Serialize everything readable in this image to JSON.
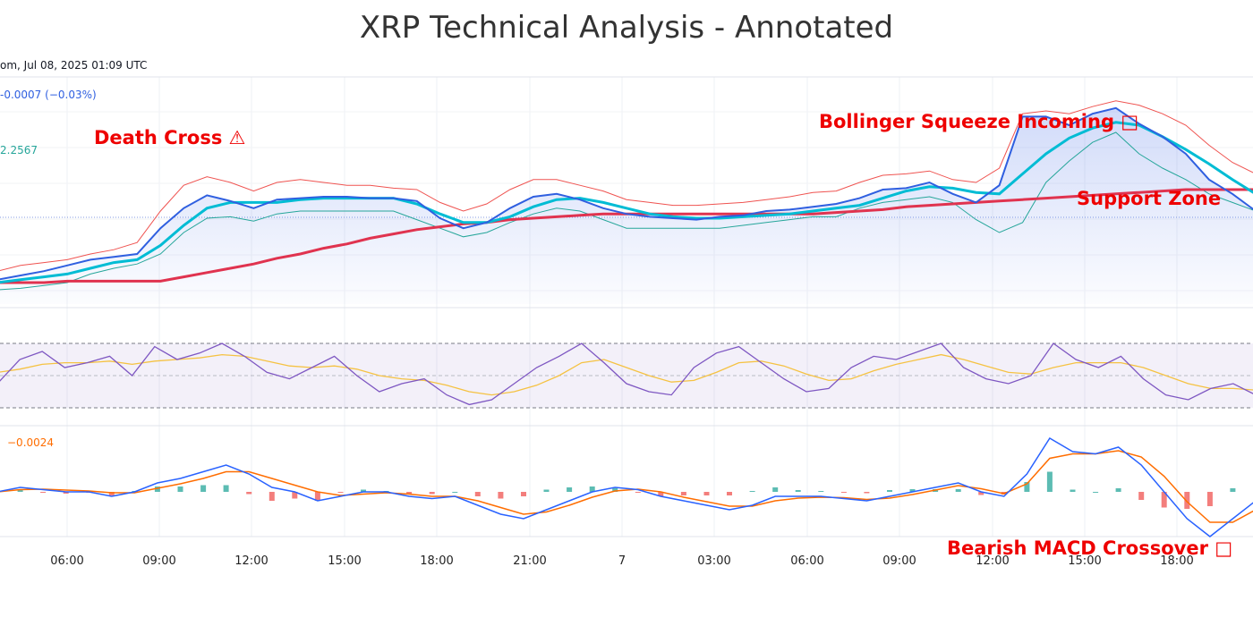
{
  "title": "XRP Technical Analysis - Annotated",
  "header": {
    "info": "om, Jul 08, 2025 01:09 UTC",
    "change": "-0.0007 (−0.03%)",
    "ma_value": "2.2567",
    "macd_value": "−0.0024"
  },
  "colors": {
    "price": "#2f5fe0",
    "bb_upper": "#ef5350",
    "bb_lower": "#26a69a",
    "ma_short": "#00bcd4",
    "ma_long": "#e0334f",
    "rsi": "#7e57c2",
    "rsi_ma": "#f5c242",
    "macd": "#2962ff",
    "signal": "#ff6d00",
    "hist_pos": "#26a69a",
    "hist_neg": "#ef5350",
    "annotation": "#ee0000"
  },
  "chart_data": {
    "type": "line",
    "title": "XRP Technical Analysis - Annotated",
    "x_ticks": [
      "06:00",
      "09:00",
      "12:00",
      "15:00",
      "18:00",
      "21:00",
      "7",
      "03:00",
      "06:00",
      "09:00",
      "12:00",
      "15:00",
      "18:00"
    ],
    "grid": true,
    "panels": [
      {
        "name": "price",
        "series": [
          {
            "key": "price",
            "values": [
              2.222,
              2.225,
              2.228,
              2.232,
              2.236,
              2.238,
              2.24,
              2.258,
              2.272,
              2.281,
              2.277,
              2.272,
              2.278,
              2.279,
              2.28,
              2.28,
              2.279,
              2.279,
              2.277,
              2.265,
              2.258,
              2.262,
              2.272,
              2.28,
              2.282,
              2.278,
              2.272,
              2.268,
              2.266,
              2.265,
              2.264,
              2.266,
              2.267,
              2.27,
              2.271,
              2.273,
              2.275,
              2.279,
              2.285,
              2.286,
              2.29,
              2.282,
              2.276,
              2.288,
              2.336,
              2.336,
              2.33,
              2.338,
              2.342,
              2.331,
              2.322,
              2.31,
              2.292,
              2.282,
              2.27
            ]
          },
          {
            "key": "bb_upper",
            "values": [
              2.228,
              2.232,
              2.234,
              2.236,
              2.24,
              2.243,
              2.248,
              2.27,
              2.288,
              2.294,
              2.29,
              2.284,
              2.29,
              2.292,
              2.29,
              2.288,
              2.288,
              2.286,
              2.285,
              2.276,
              2.27,
              2.275,
              2.285,
              2.292,
              2.292,
              2.288,
              2.284,
              2.278,
              2.276,
              2.274,
              2.274,
              2.275,
              2.276,
              2.278,
              2.28,
              2.283,
              2.284,
              2.29,
              2.295,
              2.296,
              2.298,
              2.292,
              2.29,
              2.3,
              2.338,
              2.34,
              2.338,
              2.343,
              2.347,
              2.344,
              2.338,
              2.33,
              2.316,
              2.304,
              2.296
            ]
          },
          {
            "key": "bb_lower",
            "values": [
              2.215,
              2.216,
              2.218,
              2.22,
              2.226,
              2.23,
              2.233,
              2.24,
              2.255,
              2.265,
              2.266,
              2.263,
              2.268,
              2.27,
              2.27,
              2.27,
              2.27,
              2.27,
              2.264,
              2.258,
              2.252,
              2.255,
              2.262,
              2.268,
              2.272,
              2.27,
              2.264,
              2.258,
              2.258,
              2.258,
              2.258,
              2.258,
              2.26,
              2.262,
              2.264,
              2.266,
              2.266,
              2.272,
              2.276,
              2.278,
              2.28,
              2.276,
              2.264,
              2.255,
              2.262,
              2.29,
              2.305,
              2.318,
              2.325,
              2.31,
              2.3,
              2.292,
              2.282,
              2.276,
              2.27
            ]
          },
          {
            "key": "ma_short",
            "values": [
              2.22,
              2.222,
              2.224,
              2.226,
              2.23,
              2.234,
              2.236,
              2.246,
              2.26,
              2.272,
              2.276,
              2.276,
              2.276,
              2.278,
              2.279,
              2.279,
              2.279,
              2.279,
              2.275,
              2.268,
              2.262,
              2.262,
              2.266,
              2.273,
              2.278,
              2.279,
              2.276,
              2.272,
              2.268,
              2.266,
              2.265,
              2.265,
              2.266,
              2.267,
              2.268,
              2.27,
              2.272,
              2.274,
              2.279,
              2.284,
              2.287,
              2.286,
              2.283,
              2.282,
              2.296,
              2.31,
              2.321,
              2.328,
              2.332,
              2.33,
              2.322,
              2.313,
              2.303,
              2.292,
              2.282
            ]
          },
          {
            "key": "ma_long",
            "values": [
              2.22,
              2.22,
              2.22,
              2.221,
              2.221,
              2.221,
              2.221,
              2.221,
              2.224,
              2.227,
              2.23,
              2.233,
              2.237,
              2.24,
              2.244,
              2.247,
              2.251,
              2.254,
              2.257,
              2.259,
              2.261,
              2.262,
              2.264,
              2.265,
              2.266,
              2.267,
              2.268,
              2.268,
              2.268,
              2.268,
              2.268,
              2.268,
              2.268,
              2.268,
              2.268,
              2.268,
              2.269,
              2.27,
              2.271,
              2.273,
              2.274,
              2.275,
              2.276,
              2.277,
              2.278,
              2.279,
              2.28,
              2.281,
              2.282,
              2.283,
              2.284,
              2.285,
              2.285,
              2.285,
              2.285
            ]
          }
        ]
      },
      {
        "name": "rsi",
        "upper": 70,
        "lower": 30,
        "series": [
          {
            "key": "rsi",
            "values": [
              45,
              60,
              65,
              55,
              58,
              62,
              50,
              68,
              60,
              64,
              70,
              62,
              52,
              48,
              55,
              62,
              50,
              40,
              45,
              48,
              38,
              32,
              35,
              45,
              55,
              62,
              70,
              58,
              45,
              40,
              38,
              55,
              64,
              68,
              58,
              48,
              40,
              42,
              55,
              62,
              60,
              65,
              70,
              55,
              48,
              45,
              50,
              70,
              60,
              55,
              62,
              48,
              38,
              35,
              42,
              45,
              38
            ]
          },
          {
            "key": "rsi_ma",
            "values": [
              52,
              54,
              57,
              58,
              58,
              59,
              57,
              59,
              60,
              61,
              63,
              62,
              59,
              56,
              55,
              56,
              54,
              50,
              48,
              47,
              44,
              40,
              38,
              40,
              44,
              50,
              58,
              60,
              55,
              50,
              46,
              47,
              52,
              58,
              59,
              56,
              51,
              47,
              48,
              53,
              57,
              60,
              63,
              60,
              56,
              52,
              51,
              55,
              58,
              58,
              58,
              55,
              50,
              45,
              42,
              42,
              41
            ]
          }
        ]
      },
      {
        "name": "macd",
        "series": [
          {
            "key": "macd",
            "values": [
              0.0,
              0.001,
              0.0005,
              0.0,
              0.0,
              -0.001,
              0.0,
              0.002,
              0.003,
              0.0045,
              0.006,
              0.004,
              0.001,
              0.0,
              -0.002,
              -0.001,
              0.0,
              0.0,
              -0.001,
              -0.0015,
              -0.001,
              -0.003,
              -0.005,
              -0.006,
              -0.004,
              -0.002,
              0.0,
              0.001,
              0.0005,
              -0.001,
              -0.002,
              -0.003,
              -0.004,
              -0.003,
              -0.001,
              -0.001,
              -0.001,
              -0.0015,
              -0.002,
              -0.001,
              0.0,
              0.001,
              0.002,
              0.0,
              -0.001,
              0.004,
              0.012,
              0.009,
              0.0085,
              0.01,
              0.006,
              0.0,
              -0.006,
              -0.01,
              -0.006,
              -0.002
            ]
          },
          {
            "key": "signal",
            "values": [
              0.0,
              0.0005,
              0.0006,
              0.0004,
              0.0002,
              -0.0002,
              -0.0002,
              0.0008,
              0.0018,
              0.003,
              0.0045,
              0.0045,
              0.003,
              0.0015,
              0.0,
              -0.0008,
              -0.0005,
              -0.0002,
              -0.0005,
              -0.001,
              -0.001,
              -0.002,
              -0.0035,
              -0.005,
              -0.0045,
              -0.003,
              -0.0012,
              0.0002,
              0.0006,
              0.0,
              -0.0012,
              -0.0022,
              -0.0032,
              -0.0032,
              -0.002,
              -0.0014,
              -0.0012,
              -0.0013,
              -0.0017,
              -0.0014,
              -0.0006,
              0.0004,
              0.0014,
              0.0007,
              -0.0004,
              0.0018,
              0.0075,
              0.0085,
              0.0085,
              0.0092,
              0.0078,
              0.0035,
              -0.0022,
              -0.0068,
              -0.0068,
              -0.004
            ]
          }
        ]
      }
    ],
    "annotations": [
      {
        "text": "Death Cross ⚠",
        "panel": "price"
      },
      {
        "text": "Bollinger Squeeze Incoming □",
        "panel": "price"
      },
      {
        "text": "Support Zone",
        "panel": "price"
      },
      {
        "text": "Bearish MACD Crossover □",
        "panel": "macd"
      }
    ]
  }
}
